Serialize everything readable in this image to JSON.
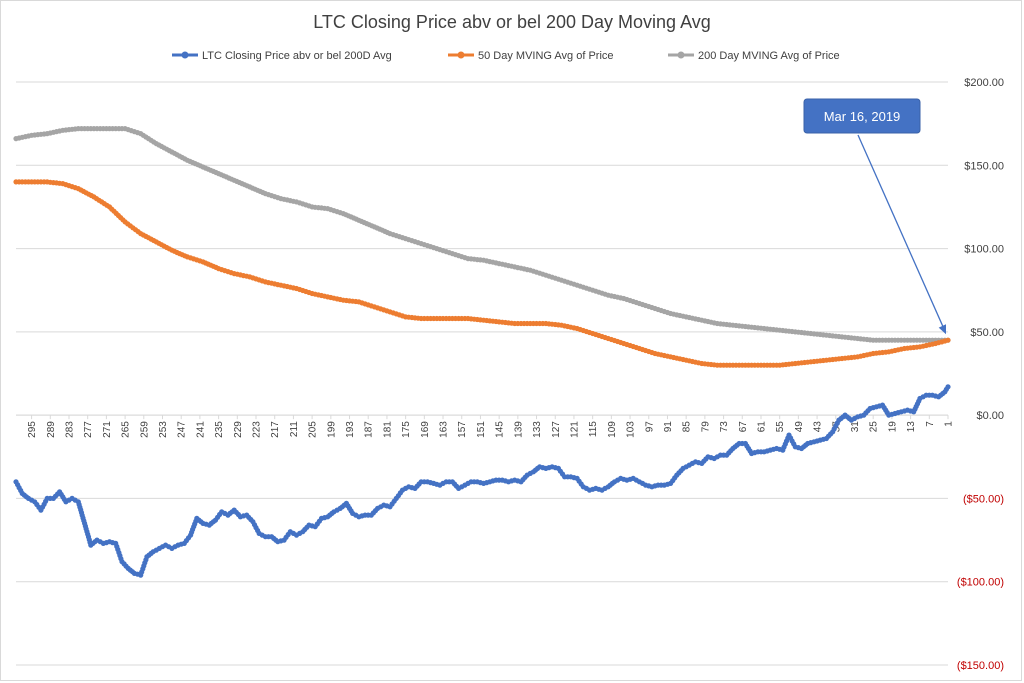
{
  "chart_data": {
    "type": "line",
    "title": "LTC Closing  Price abv or bel 200 Day Moving Avg",
    "xlabel": "",
    "ylabel": "",
    "ylim": [
      -150,
      200
    ],
    "x_range": [
      300,
      1
    ],
    "x_reversed": true,
    "grid": true,
    "legend_position": "top",
    "x_tick_labels": [
      "295",
      "289",
      "283",
      "277",
      "271",
      "265",
      "259",
      "253",
      "247",
      "241",
      "235",
      "229",
      "223",
      "217",
      "211",
      "205",
      "199",
      "193",
      "187",
      "181",
      "175",
      "169",
      "163",
      "157",
      "151",
      "145",
      "139",
      "133",
      "127",
      "121",
      "115",
      "109",
      "103",
      "97",
      "91",
      "85",
      "79",
      "73",
      "67",
      "61",
      "55",
      "49",
      "43",
      "37",
      "31",
      "25",
      "19",
      "13",
      "7",
      "1"
    ],
    "y_ticks": [
      {
        "value": 200,
        "label": "$200.00"
      },
      {
        "value": 150,
        "label": "$150.00"
      },
      {
        "value": 100,
        "label": "$100.00"
      },
      {
        "value": 50,
        "label": "$50.00"
      },
      {
        "value": 0,
        "label": "$0.00"
      },
      {
        "value": -50,
        "label": "($50.00)"
      },
      {
        "value": -100,
        "label": "($100.00)"
      },
      {
        "value": -150,
        "label": "($150.00)"
      }
    ],
    "series": [
      {
        "name": "LTC Closing  Price abv or bel 200D Avg",
        "color": "#4472c4",
        "points": [
          [
            300,
            -40
          ],
          [
            298,
            -47
          ],
          [
            296,
            -50
          ],
          [
            294,
            -52
          ],
          [
            292,
            -57
          ],
          [
            290,
            -50
          ],
          [
            288,
            -50
          ],
          [
            286,
            -46
          ],
          [
            284,
            -52
          ],
          [
            282,
            -50
          ],
          [
            280,
            -52
          ],
          [
            278,
            -65
          ],
          [
            276,
            -78
          ],
          [
            274,
            -75
          ],
          [
            272,
            -77
          ],
          [
            270,
            -76
          ],
          [
            268,
            -77
          ],
          [
            266,
            -88
          ],
          [
            264,
            -92
          ],
          [
            262,
            -95
          ],
          [
            260,
            -96
          ],
          [
            258,
            -85
          ],
          [
            256,
            -82
          ],
          [
            254,
            -80
          ],
          [
            252,
            -78
          ],
          [
            250,
            -80
          ],
          [
            248,
            -78
          ],
          [
            246,
            -77
          ],
          [
            244,
            -72
          ],
          [
            242,
            -62
          ],
          [
            240,
            -65
          ],
          [
            238,
            -66
          ],
          [
            236,
            -63
          ],
          [
            234,
            -58
          ],
          [
            232,
            -60
          ],
          [
            230,
            -57
          ],
          [
            228,
            -61
          ],
          [
            226,
            -60
          ],
          [
            224,
            -64
          ],
          [
            222,
            -71
          ],
          [
            220,
            -73
          ],
          [
            218,
            -73
          ],
          [
            216,
            -76
          ],
          [
            214,
            -75
          ],
          [
            212,
            -70
          ],
          [
            210,
            -72
          ],
          [
            208,
            -70
          ],
          [
            206,
            -66
          ],
          [
            204,
            -67
          ],
          [
            202,
            -62
          ],
          [
            200,
            -61
          ],
          [
            198,
            -58
          ],
          [
            196,
            -56
          ],
          [
            194,
            -53
          ],
          [
            192,
            -59
          ],
          [
            190,
            -61
          ],
          [
            188,
            -60
          ],
          [
            186,
            -60
          ],
          [
            184,
            -56
          ],
          [
            182,
            -54
          ],
          [
            180,
            -55
          ],
          [
            178,
            -50
          ],
          [
            176,
            -45
          ],
          [
            174,
            -43
          ],
          [
            172,
            -44
          ],
          [
            170,
            -40
          ],
          [
            168,
            -40
          ],
          [
            166,
            -41
          ],
          [
            164,
            -42
          ],
          [
            162,
            -40
          ],
          [
            160,
            -40
          ],
          [
            158,
            -44
          ],
          [
            156,
            -42
          ],
          [
            154,
            -40
          ],
          [
            152,
            -40
          ],
          [
            150,
            -41
          ],
          [
            148,
            -40
          ],
          [
            146,
            -39
          ],
          [
            144,
            -39
          ],
          [
            142,
            -40
          ],
          [
            140,
            -39
          ],
          [
            138,
            -40
          ],
          [
            136,
            -36
          ],
          [
            134,
            -34
          ],
          [
            132,
            -31
          ],
          [
            130,
            -32
          ],
          [
            128,
            -31
          ],
          [
            126,
            -32
          ],
          [
            124,
            -37
          ],
          [
            122,
            -37
          ],
          [
            120,
            -38
          ],
          [
            118,
            -43
          ],
          [
            116,
            -45
          ],
          [
            114,
            -44
          ],
          [
            112,
            -45
          ],
          [
            110,
            -43
          ],
          [
            108,
            -40
          ],
          [
            106,
            -38
          ],
          [
            104,
            -39
          ],
          [
            102,
            -38
          ],
          [
            100,
            -40
          ],
          [
            98,
            -42
          ],
          [
            96,
            -43
          ],
          [
            94,
            -42
          ],
          [
            92,
            -42
          ],
          [
            90,
            -41
          ],
          [
            88,
            -36
          ],
          [
            86,
            -32
          ],
          [
            84,
            -30
          ],
          [
            82,
            -28
          ],
          [
            80,
            -29
          ],
          [
            78,
            -25
          ],
          [
            76,
            -26
          ],
          [
            74,
            -24
          ],
          [
            72,
            -24
          ],
          [
            70,
            -20
          ],
          [
            68,
            -17
          ],
          [
            66,
            -17
          ],
          [
            64,
            -23
          ],
          [
            62,
            -22
          ],
          [
            60,
            -22
          ],
          [
            58,
            -21
          ],
          [
            56,
            -20
          ],
          [
            54,
            -21
          ],
          [
            52,
            -12
          ],
          [
            50,
            -19
          ],
          [
            48,
            -20
          ],
          [
            46,
            -17
          ],
          [
            44,
            -16
          ],
          [
            42,
            -15
          ],
          [
            40,
            -14
          ],
          [
            38,
            -10
          ],
          [
            36,
            -3
          ],
          [
            34,
            0
          ],
          [
            32,
            -3
          ],
          [
            30,
            -1
          ],
          [
            28,
            0
          ],
          [
            26,
            4
          ],
          [
            24,
            5
          ],
          [
            22,
            6
          ],
          [
            20,
            0
          ],
          [
            18,
            1
          ],
          [
            16,
            2
          ],
          [
            14,
            3
          ],
          [
            12,
            2
          ],
          [
            10,
            10
          ],
          [
            8,
            12
          ],
          [
            6,
            12
          ],
          [
            4,
            11
          ],
          [
            2,
            14
          ],
          [
            1,
            17
          ]
        ]
      },
      {
        "name": "50 Day MVING Avg of  Price",
        "color": "#ed7d31",
        "points": [
          [
            300,
            140
          ],
          [
            295,
            140
          ],
          [
            290,
            140
          ],
          [
            285,
            139
          ],
          [
            280,
            136
          ],
          [
            275,
            131
          ],
          [
            270,
            125
          ],
          [
            265,
            116
          ],
          [
            260,
            109
          ],
          [
            255,
            104
          ],
          [
            250,
            99
          ],
          [
            245,
            95
          ],
          [
            240,
            92
          ],
          [
            235,
            88
          ],
          [
            230,
            85
          ],
          [
            225,
            83
          ],
          [
            220,
            80
          ],
          [
            215,
            78
          ],
          [
            210,
            76
          ],
          [
            205,
            73
          ],
          [
            200,
            71
          ],
          [
            195,
            69
          ],
          [
            190,
            68
          ],
          [
            185,
            65
          ],
          [
            180,
            62
          ],
          [
            175,
            59
          ],
          [
            170,
            58
          ],
          [
            165,
            58
          ],
          [
            160,
            58
          ],
          [
            155,
            58
          ],
          [
            150,
            57
          ],
          [
            145,
            56
          ],
          [
            140,
            55
          ],
          [
            135,
            55
          ],
          [
            130,
            55
          ],
          [
            125,
            54
          ],
          [
            120,
            52
          ],
          [
            115,
            49
          ],
          [
            110,
            46
          ],
          [
            105,
            43
          ],
          [
            100,
            40
          ],
          [
            95,
            37
          ],
          [
            90,
            35
          ],
          [
            85,
            33
          ],
          [
            80,
            31
          ],
          [
            75,
            30
          ],
          [
            70,
            30
          ],
          [
            65,
            30
          ],
          [
            60,
            30
          ],
          [
            55,
            30
          ],
          [
            50,
            31
          ],
          [
            45,
            32
          ],
          [
            40,
            33
          ],
          [
            35,
            34
          ],
          [
            30,
            35
          ],
          [
            25,
            37
          ],
          [
            20,
            38
          ],
          [
            15,
            40
          ],
          [
            10,
            41
          ],
          [
            5,
            43
          ],
          [
            1,
            45
          ]
        ]
      },
      {
        "name": "200 Day MVING Avg of  Price",
        "color": "#a5a5a5",
        "points": [
          [
            300,
            166
          ],
          [
            295,
            168
          ],
          [
            290,
            169
          ],
          [
            285,
            171
          ],
          [
            280,
            172
          ],
          [
            275,
            172
          ],
          [
            270,
            172
          ],
          [
            265,
            172
          ],
          [
            260,
            169
          ],
          [
            255,
            163
          ],
          [
            250,
            158
          ],
          [
            245,
            153
          ],
          [
            240,
            149
          ],
          [
            235,
            145
          ],
          [
            230,
            141
          ],
          [
            225,
            137
          ],
          [
            220,
            133
          ],
          [
            215,
            130
          ],
          [
            210,
            128
          ],
          [
            205,
            125
          ],
          [
            200,
            124
          ],
          [
            195,
            121
          ],
          [
            190,
            117
          ],
          [
            185,
            113
          ],
          [
            180,
            109
          ],
          [
            175,
            106
          ],
          [
            170,
            103
          ],
          [
            165,
            100
          ],
          [
            160,
            97
          ],
          [
            155,
            94
          ],
          [
            150,
            93
          ],
          [
            145,
            91
          ],
          [
            140,
            89
          ],
          [
            135,
            87
          ],
          [
            130,
            84
          ],
          [
            125,
            81
          ],
          [
            120,
            78
          ],
          [
            115,
            75
          ],
          [
            110,
            72
          ],
          [
            105,
            70
          ],
          [
            100,
            67
          ],
          [
            95,
            64
          ],
          [
            90,
            61
          ],
          [
            85,
            59
          ],
          [
            80,
            57
          ],
          [
            75,
            55
          ],
          [
            70,
            54
          ],
          [
            65,
            53
          ],
          [
            60,
            52
          ],
          [
            55,
            51
          ],
          [
            50,
            50
          ],
          [
            45,
            49
          ],
          [
            40,
            48
          ],
          [
            35,
            47
          ],
          [
            30,
            46
          ],
          [
            25,
            45
          ],
          [
            20,
            45
          ],
          [
            15,
            45
          ],
          [
            10,
            45
          ],
          [
            5,
            45
          ],
          [
            1,
            45
          ]
        ]
      }
    ],
    "annotation": {
      "text": "Mar 16, 2019",
      "target_x": 1,
      "target_y": 45,
      "color": "#4472c4"
    }
  }
}
